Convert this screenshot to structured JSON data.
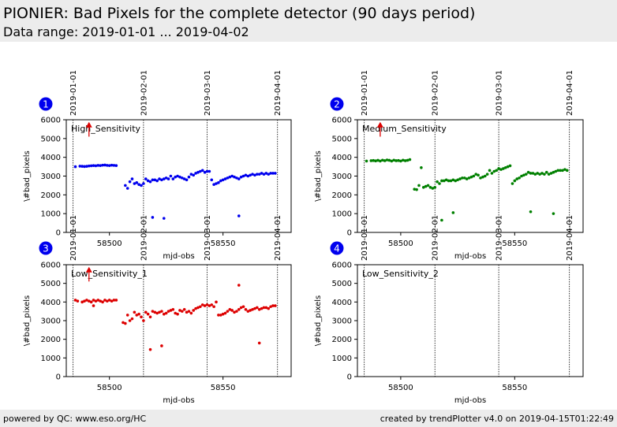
{
  "header": {
    "title": "PIONIER: Bad Pixels for the complete detector (90 days period)",
    "subtitle": "Data range: 2019-01-01 ... 2019-04-02"
  },
  "footer": {
    "left": "powered by QC: www.eso.org/HC",
    "right": "created by trendPlotter v4.0 on 2019-04-15T01:22:49"
  },
  "colors": {
    "badge": "#0000ee",
    "marker": "#dd0000"
  },
  "chart_data": [
    {
      "type": "scatter",
      "panel": "1",
      "title": "High_Sensitivity",
      "xlabel": "mjd-obs",
      "ylabel": "\\#bad_pixels",
      "color": "#0000ee",
      "xlim": [
        58481,
        58580
      ],
      "ylim": [
        0,
        6000
      ],
      "xticks": [
        58500,
        58550
      ],
      "yticks": [
        0,
        1000,
        2000,
        3000,
        4000,
        5000,
        6000
      ],
      "date_lines": [
        {
          "x": 58484,
          "label": "2019-01-01"
        },
        {
          "x": 58515,
          "label": "2019-02-01"
        },
        {
          "x": 58543,
          "label": "2019-03-01"
        },
        {
          "x": 58574,
          "label": "2019-04-01"
        }
      ],
      "marker": {
        "x": 58491,
        "y_low": 5100,
        "y_high": 5800
      },
      "x": [
        58485,
        58487,
        58488,
        58489,
        58490,
        58491,
        58492,
        58493,
        58494,
        58495,
        58496,
        58497,
        58498,
        58499,
        58500,
        58501,
        58502,
        58503,
        58507,
        58508,
        58509,
        58510,
        58511,
        58512,
        58513,
        58514,
        58515,
        58516,
        58517,
        58518,
        58519,
        58520,
        58521,
        58522,
        58523,
        58524,
        58525,
        58526,
        58527,
        58528,
        58529,
        58530,
        58531,
        58532,
        58533,
        58534,
        58535,
        58536,
        58537,
        58538,
        58539,
        58540,
        58541,
        58542,
        58543,
        58544,
        58545,
        58546,
        58547,
        58548,
        58549,
        58550,
        58551,
        58552,
        58553,
        58554,
        58555,
        58556,
        58557,
        58558,
        58559,
        58560,
        58561,
        58562,
        58563,
        58564,
        58565,
        58566,
        58567,
        58568,
        58569,
        58570,
        58571,
        58572,
        58573,
        58519,
        58524,
        58557
      ],
      "y": [
        3500,
        3530,
        3520,
        3510,
        3520,
        3540,
        3550,
        3560,
        3550,
        3570,
        3560,
        3580,
        3590,
        3570,
        3560,
        3580,
        3570,
        3560,
        2500,
        2350,
        2700,
        2850,
        2600,
        2650,
        2550,
        2500,
        2600,
        2850,
        2750,
        2700,
        2800,
        2800,
        2750,
        2850,
        2800,
        2850,
        2900,
        2850,
        3000,
        2850,
        2950,
        3000,
        2950,
        2900,
        2850,
        2800,
        2950,
        3100,
        3050,
        3150,
        3200,
        3250,
        3300,
        3200,
        3250,
        3250,
        2800,
        2550,
        2600,
        2650,
        2750,
        2800,
        2850,
        2900,
        2950,
        3000,
        2950,
        2900,
        2850,
        2950,
        3000,
        3050,
        3000,
        3050,
        3100,
        3050,
        3100,
        3100,
        3150,
        3100,
        3150,
        3100,
        3150,
        3150,
        3150,
        800,
        750,
        880
      ]
    },
    {
      "type": "scatter",
      "panel": "2",
      "title": "Medium_Sensitivity",
      "xlabel": "mjd-obs",
      "ylabel": "\\#bad_pixels",
      "color": "#008000",
      "xlim": [
        58481,
        58580
      ],
      "ylim": [
        0,
        6000
      ],
      "xticks": [
        58500,
        58550
      ],
      "yticks": [
        0,
        1000,
        2000,
        3000,
        4000,
        5000,
        6000
      ],
      "date_lines": [
        {
          "x": 58484,
          "label": "2019-01-01"
        },
        {
          "x": 58515,
          "label": "2019-02-01"
        },
        {
          "x": 58543,
          "label": "2019-03-01"
        },
        {
          "x": 58574,
          "label": "2019-04-01"
        }
      ],
      "marker": {
        "x": 58491,
        "y_low": 5100,
        "y_high": 5800
      },
      "x": [
        58485,
        58487,
        58488,
        58489,
        58490,
        58491,
        58492,
        58493,
        58494,
        58495,
        58496,
        58497,
        58498,
        58499,
        58500,
        58501,
        58502,
        58503,
        58504,
        58506,
        58507,
        58508,
        58509,
        58510,
        58511,
        58512,
        58513,
        58514,
        58515,
        58516,
        58517,
        58518,
        58519,
        58520,
        58521,
        58522,
        58523,
        58524,
        58525,
        58526,
        58527,
        58528,
        58529,
        58530,
        58531,
        58532,
        58533,
        58534,
        58535,
        58536,
        58537,
        58538,
        58539,
        58540,
        58541,
        58542,
        58543,
        58544,
        58545,
        58546,
        58547,
        58548,
        58549,
        58550,
        58551,
        58552,
        58553,
        58554,
        58555,
        58556,
        58557,
        58558,
        58559,
        58560,
        58561,
        58562,
        58563,
        58564,
        58565,
        58566,
        58567,
        58568,
        58569,
        58570,
        58571,
        58572,
        58573,
        58518,
        58523,
        58557,
        58567
      ],
      "y": [
        3800,
        3820,
        3830,
        3810,
        3840,
        3800,
        3850,
        3820,
        3860,
        3840,
        3800,
        3850,
        3820,
        3830,
        3800,
        3850,
        3820,
        3840,
        3880,
        2300,
        2280,
        2500,
        3450,
        2400,
        2450,
        2500,
        2400,
        2350,
        2400,
        2700,
        2600,
        2750,
        2750,
        2800,
        2750,
        2750,
        2800,
        2750,
        2800,
        2850,
        2900,
        2900,
        2850,
        2900,
        2950,
        3000,
        3100,
        3050,
        2900,
        2950,
        3000,
        3100,
        3300,
        3150,
        3250,
        3300,
        3400,
        3350,
        3400,
        3450,
        3500,
        3550,
        2600,
        2750,
        2850,
        2900,
        3000,
        3050,
        3100,
        3200,
        3150,
        3150,
        3100,
        3150,
        3100,
        3150,
        3100,
        3200,
        3100,
        3150,
        3200,
        3250,
        3300,
        3300,
        3300,
        3350,
        3300,
        650,
        1050,
        1100,
        1000
      ]
    },
    {
      "type": "scatter",
      "panel": "3",
      "title": "Low_Sensitivity_1",
      "xlabel": "mjd-obs",
      "ylabel": "\\#bad_pixels",
      "color": "#dd0000",
      "xlim": [
        58481,
        58580
      ],
      "ylim": [
        0,
        6000
      ],
      "xticks": [
        58500,
        58550
      ],
      "yticks": [
        0,
        1000,
        2000,
        3000,
        4000,
        5000,
        6000
      ],
      "date_lines": [
        {
          "x": 58484,
          "label": "2019-01-01"
        },
        {
          "x": 58515,
          "label": "2019-02-01"
        },
        {
          "x": 58543,
          "label": "2019-03-01"
        },
        {
          "x": 58574,
          "label": "2019-04-01"
        }
      ],
      "marker": {
        "x": 58491,
        "y_low": 5100,
        "y_high": 5800
      },
      "x": [
        58485,
        58486,
        58488,
        58489,
        58490,
        58491,
        58492,
        58493,
        58494,
        58495,
        58496,
        58497,
        58498,
        58499,
        58500,
        58501,
        58502,
        58503,
        58506,
        58507,
        58508,
        58509,
        58510,
        58511,
        58512,
        58513,
        58514,
        58515,
        58516,
        58517,
        58518,
        58519,
        58520,
        58521,
        58522,
        58523,
        58524,
        58525,
        58526,
        58527,
        58528,
        58529,
        58530,
        58531,
        58532,
        58533,
        58534,
        58535,
        58536,
        58537,
        58538,
        58539,
        58540,
        58541,
        58542,
        58543,
        58544,
        58545,
        58546,
        58547,
        58548,
        58549,
        58550,
        58551,
        58552,
        58553,
        58554,
        58555,
        58556,
        58557,
        58558,
        58559,
        58560,
        58561,
        58562,
        58563,
        58564,
        58565,
        58566,
        58567,
        58568,
        58569,
        58570,
        58571,
        58572,
        58573,
        58493,
        58518,
        58523,
        58557,
        58566
      ],
      "y": [
        4100,
        4050,
        4000,
        4050,
        4100,
        4050,
        4000,
        4100,
        4050,
        4100,
        4050,
        4000,
        4100,
        4050,
        4100,
        4050,
        4100,
        4100,
        2900,
        2850,
        3300,
        3000,
        3100,
        3450,
        3300,
        3350,
        3200,
        3000,
        3450,
        3350,
        3200,
        3500,
        3450,
        3400,
        3450,
        3500,
        3350,
        3400,
        3500,
        3550,
        3600,
        3400,
        3350,
        3550,
        3500,
        3600,
        3450,
        3500,
        3400,
        3550,
        3650,
        3700,
        3750,
        3850,
        3800,
        3850,
        3800,
        3850,
        3750,
        4000,
        3300,
        3300,
        3350,
        3400,
        3500,
        3600,
        3550,
        3450,
        3500,
        3600,
        3700,
        3750,
        3600,
        3500,
        3550,
        3600,
        3650,
        3700,
        3600,
        3650,
        3700,
        3700,
        3650,
        3750,
        3800,
        3800,
        3800,
        1450,
        1650,
        4900,
        1800
      ]
    },
    {
      "type": "scatter",
      "panel": "4",
      "title": "Low_Sensitivity_2",
      "xlabel": "mjd-obs",
      "ylabel": "\\#bad_pixels",
      "color": "#dd0000",
      "xlim": [
        58481,
        58580
      ],
      "ylim": [
        0,
        6000
      ],
      "xticks": [
        58500,
        58550
      ],
      "yticks": [
        0,
        1000,
        2000,
        3000,
        4000,
        5000,
        6000
      ],
      "date_lines": [
        {
          "x": 58484,
          "label": "2019-01-01"
        },
        {
          "x": 58515,
          "label": "2019-02-01"
        },
        {
          "x": 58543,
          "label": "2019-03-01"
        },
        {
          "x": 58574,
          "label": "2019-04-01"
        }
      ],
      "marker": null,
      "x": [],
      "y": []
    }
  ]
}
